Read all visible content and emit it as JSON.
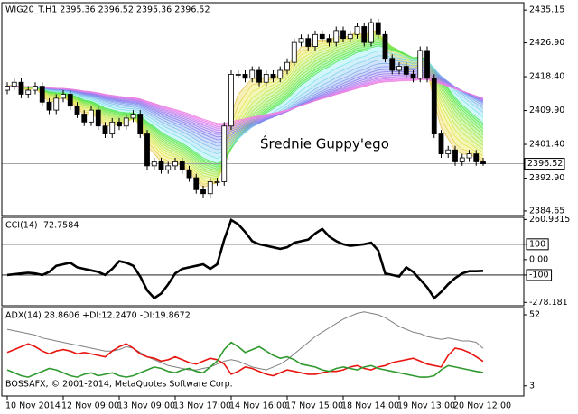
{
  "chart_data": [
    {
      "type": "candlestick",
      "title": "WIG20_T.H1  2395.36 2396.52 2395.36 2396.52",
      "annotation": "Średnie Guppy'ego",
      "ylim": [
        2383.5,
        2437
      ],
      "yticks": [
        2435.15,
        {
          "value": 2426.9,
          "label": "2426.90"
        },
        {
          "value": 2418.4,
          "label": "2418.40"
        },
        {
          "value": 2409.9,
          "label": "2409.90"
        },
        {
          "value": 2401.4,
          "label": "2401.40"
        },
        {
          "value": 2392.9,
          "label": "2392.90"
        },
        2384.65
      ],
      "last_price": 2396.52,
      "open": [
        2415,
        2416,
        2417,
        2414,
        2415,
        2416,
        2412,
        2410,
        2413,
        2414,
        2411,
        2409,
        2407,
        2410,
        2406,
        2404,
        2407,
        2406,
        2408,
        2409,
        2404,
        2396,
        2397,
        2395,
        2396,
        2397,
        2395,
        2393,
        2390,
        2389,
        2392,
        2392,
        2406,
        2419,
        2419,
        2418,
        2420,
        2417,
        2419,
        2418,
        2420,
        2422,
        2427,
        2428,
        2426,
        2429,
        2428,
        2427,
        2430,
        2428,
        2429,
        2431,
        2427,
        2432,
        2429,
        2423,
        2420,
        2421,
        2419,
        2418,
        2425,
        2418,
        2404,
        2399,
        2400,
        2397,
        2398,
        2399,
        2397
      ],
      "high": [
        2417,
        2418,
        2418,
        2416,
        2417,
        2417,
        2413,
        2414,
        2415,
        2415,
        2412,
        2410,
        2411,
        2411,
        2407,
        2408,
        2408,
        2409,
        2410,
        2410,
        2405,
        2398,
        2398,
        2397,
        2398,
        2398,
        2396,
        2394,
        2391,
        2393,
        2393,
        2407,
        2420,
        2420,
        2420,
        2421,
        2421,
        2420,
        2420,
        2421,
        2423,
        2428,
        2429,
        2429,
        2430,
        2430,
        2429,
        2431,
        2431,
        2430,
        2432,
        2432,
        2433,
        2433,
        2430,
        2424,
        2422,
        2422,
        2420,
        2426,
        2426,
        2419,
        2405,
        2401,
        2401,
        2399,
        2400,
        2400,
        2398
      ],
      "low": [
        2414,
        2415,
        2413,
        2413,
        2414,
        2411,
        2409,
        2409,
        2412,
        2410,
        2408,
        2406,
        2406,
        2405,
        2403,
        2403,
        2405,
        2405,
        2407,
        2403,
        2395,
        2395,
        2394,
        2394,
        2395,
        2394,
        2392,
        2389,
        2388,
        2388,
        2391,
        2391,
        2405,
        2418,
        2417,
        2417,
        2416,
        2416,
        2417,
        2417,
        2419,
        2421,
        2426,
        2425,
        2425,
        2427,
        2426,
        2426,
        2427,
        2427,
        2428,
        2426,
        2426,
        2428,
        2422,
        2419,
        2419,
        2418,
        2417,
        2417,
        2417,
        2403,
        2398,
        2398,
        2396,
        2396,
        2397,
        2396,
        2396
      ],
      "close": [
        2416,
        2417,
        2414,
        2415,
        2416,
        2412,
        2410,
        2413,
        2414,
        2411,
        2409,
        2407,
        2410,
        2406,
        2404,
        2407,
        2406,
        2408,
        2409,
        2404,
        2396,
        2397,
        2395,
        2396,
        2397,
        2395,
        2393,
        2390,
        2389,
        2392,
        2392,
        2406,
        2419,
        2419,
        2418,
        2420,
        2417,
        2419,
        2418,
        2420,
        2422,
        2427,
        2428,
        2426,
        2429,
        2428,
        2427,
        2430,
        2428,
        2429,
        2431,
        2427,
        2432,
        2429,
        2423,
        2420,
        2421,
        2419,
        2418,
        2425,
        2418,
        2404,
        2399,
        2400,
        2397,
        2398,
        2399,
        2397,
        2396.52
      ]
    },
    {
      "type": "line",
      "title": "CCI(14) -72.7584",
      "ylim": [
        -300,
        275
      ],
      "yticks": [
        260.9315,
        100,
        {
          "value": 0,
          "label": "0.00"
        },
        -100,
        -278.181
      ],
      "level_lines": [
        100,
        -100
      ],
      "color": "#000000",
      "values": [
        -100,
        -95,
        -90,
        -85,
        -90,
        -100,
        -80,
        -40,
        -30,
        -20,
        -50,
        -60,
        -70,
        -80,
        -100,
        -60,
        -10,
        -20,
        -40,
        -110,
        -200,
        -250,
        -220,
        -160,
        -90,
        -60,
        -50,
        -40,
        -30,
        -60,
        -30,
        130,
        258,
        230,
        180,
        120,
        100,
        90,
        80,
        70,
        80,
        110,
        120,
        130,
        170,
        200,
        150,
        120,
        100,
        90,
        95,
        100,
        110,
        60,
        -90,
        -100,
        -110,
        -50,
        -80,
        -130,
        -180,
        -250,
        -210,
        -160,
        -120,
        -90,
        -75,
        -75,
        -72.7584
      ]
    },
    {
      "type": "line",
      "title": "ADX(14) 28.8606 +DI:12.2470 -DI:19.8672",
      "annotation": "BOSSAFX, © 2001-2014, MetaQuotes Software Corp.",
      "ylim": [
        -4,
        57
      ],
      "yticks": [
        52,
        3
      ],
      "categories": [
        "10 Nov 2014",
        null,
        null,
        null,
        null,
        null,
        null,
        null,
        "12 Nov 09:00",
        null,
        null,
        null,
        null,
        null,
        null,
        null,
        "13 Nov 09:00",
        null,
        null,
        null,
        null,
        null,
        null,
        null,
        "13 Nov 17:00",
        null,
        null,
        null,
        null,
        null,
        null,
        null,
        "14 Nov 16:00",
        null,
        null,
        null,
        null,
        null,
        null,
        null,
        "17 Nov 15:00",
        null,
        null,
        null,
        null,
        null,
        null,
        null,
        "18 Nov 14:00",
        null,
        null,
        null,
        null,
        null,
        null,
        null,
        "19 Nov 13:00",
        null,
        null,
        null,
        null,
        null,
        null,
        null,
        "20 Nov 12:00",
        null,
        null,
        null,
        null
      ],
      "series": [
        {
          "name": "ADX",
          "color": "#808080",
          "values": [
            42,
            41,
            40,
            39,
            38,
            36,
            35,
            34,
            33,
            32,
            31,
            30,
            29,
            28,
            27,
            27,
            28,
            30,
            29,
            26,
            23,
            21,
            19,
            17,
            16,
            15,
            14,
            14,
            15,
            16,
            18,
            20,
            21,
            20,
            18,
            16,
            15,
            14,
            16,
            18,
            21,
            25,
            29,
            33,
            37,
            40,
            43,
            46,
            49,
            51,
            53,
            54,
            53,
            52,
            50,
            47,
            44,
            42,
            40,
            39,
            37,
            36,
            35,
            36,
            35,
            34,
            34,
            33,
            28.8606
          ]
        },
        {
          "name": "-DI",
          "color": "#e8140f",
          "values": [
            26,
            28,
            30,
            32,
            30,
            27,
            25,
            27,
            28,
            27,
            25,
            26,
            25,
            24,
            23,
            27,
            30,
            32,
            29,
            25,
            23,
            22,
            20,
            21,
            23,
            21,
            19,
            18,
            20,
            22,
            21,
            18,
            11,
            13,
            16,
            15,
            13,
            11,
            10,
            12,
            14,
            13,
            12,
            11,
            11,
            12,
            13,
            13,
            14,
            16,
            17,
            15,
            14,
            16,
            17,
            19,
            20,
            21,
            22,
            20,
            18,
            17,
            16,
            24,
            29,
            28,
            26,
            23,
            19.8672
          ]
        },
        {
          "name": "+DI",
          "color": "#2e9a2e",
          "values": [
            14,
            12,
            10,
            9,
            11,
            13,
            15,
            14,
            12,
            10,
            9,
            11,
            12,
            10,
            11,
            12,
            10,
            9,
            10,
            12,
            14,
            16,
            15,
            13,
            12,
            14,
            15,
            13,
            12,
            16,
            20,
            28,
            33,
            30,
            26,
            28,
            30,
            27,
            24,
            22,
            23,
            21,
            18,
            17,
            16,
            14,
            13,
            15,
            16,
            15,
            14,
            16,
            17,
            15,
            14,
            13,
            12,
            11,
            10,
            9,
            9,
            10,
            14,
            17,
            16,
            15,
            14,
            13,
            12.247
          ]
        }
      ]
    }
  ]
}
